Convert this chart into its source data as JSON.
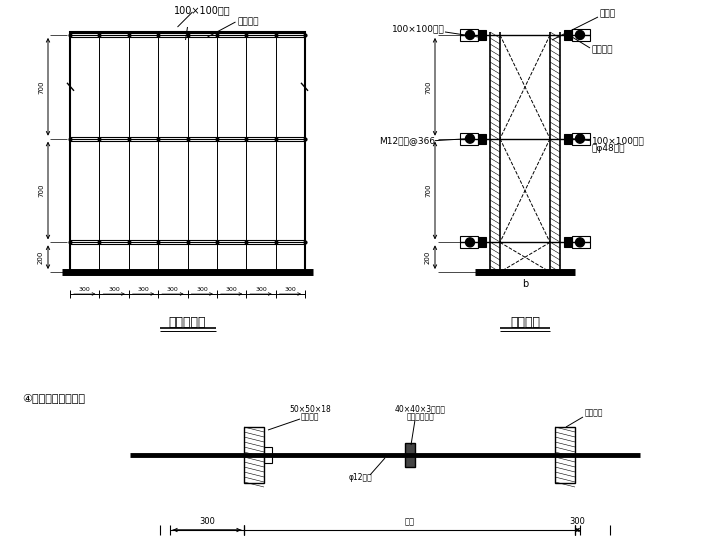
{
  "bg_color": "#ffffff",
  "lc": "#000000",
  "title1": "墙模立面图",
  "title2": "墙剖面图",
  "label_top1": "100×100木枋",
  "label_top1b": "拉紧扣件",
  "label_top2": "胶合板",
  "label_top2b": "100×100木枋",
  "label_top2c": "拉紧扣件",
  "label_m12": "M12螺栓@366",
  "label_100r": "100×100木枋",
  "label_phi48": "及φ48钢管",
  "label_b": "b",
  "dim_300s": [
    "300",
    "300",
    "300",
    "300",
    "300",
    "300",
    "300",
    "300"
  ],
  "label_section_title": "④止水螺栓示意图：",
  "label_50x50": "50×50×18",
  "label_mupian": "木板垫片",
  "label_40x40": "40×40×3止水片",
  "label_shuangmian": "（双面满焊）",
  "label_qiangti": "墙体模板",
  "label_phi12": "φ12螺栓",
  "label_300left": "300",
  "label_300right": "300",
  "label_bihou": "壁厚"
}
